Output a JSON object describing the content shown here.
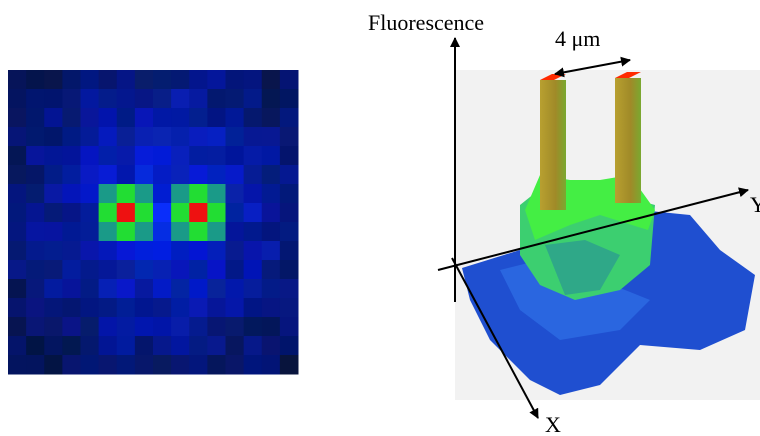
{
  "labels": {
    "fluorescence": "Fluorescence",
    "distance": "4 μm",
    "y_axis": "Y",
    "x_axis": "X"
  }
}
